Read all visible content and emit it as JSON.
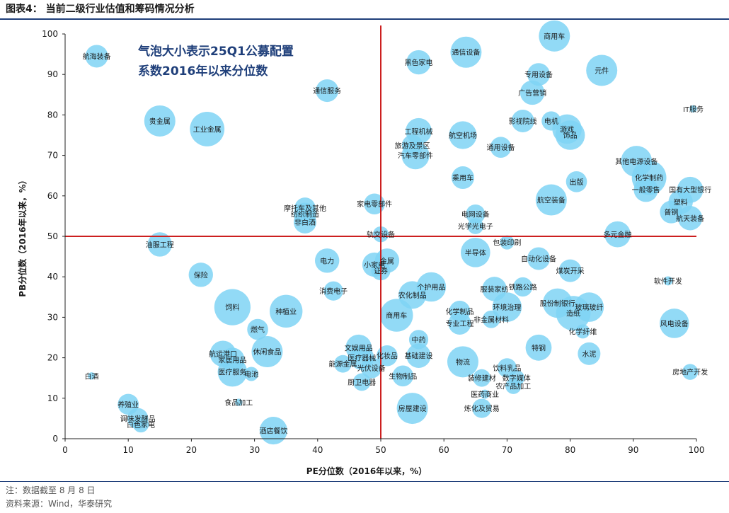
{
  "figure": {
    "title": "图表4： 当前二级行业估值和筹码情况分析",
    "note": "注：数据截至 8 月 8 日",
    "source": "资料来源：Wind，华泰研究"
  },
  "chart_data": {
    "type": "scatter",
    "xlabel": "PE分位数（2016年以来，%）",
    "ylabel": "PB分位数（2016年以来，%）",
    "xlim": [
      0,
      100
    ],
    "ylim": [
      0,
      100
    ],
    "x_ticks": [
      0,
      10,
      20,
      30,
      40,
      50,
      60,
      70,
      80,
      90,
      100
    ],
    "y_ticks": [
      0,
      10,
      20,
      30,
      40,
      50,
      60,
      70,
      80,
      90,
      100
    ],
    "reference_lines": {
      "x": 50,
      "y": 50,
      "color": "#cc1f1f"
    },
    "bubble_color": "#7fd3f5",
    "annotation": [
      "气泡大小表示25Q1公募配置",
      "系数2016年以来分位数"
    ],
    "points": [
      {
        "name": "航海装备",
        "x": 5,
        "y": 94.5,
        "size": 0.5
      },
      {
        "name": "白酒",
        "x": 4.2,
        "y": 15.5,
        "size": 0.05
      },
      {
        "name": "贵金属",
        "x": 15,
        "y": 78.5,
        "size": 0.75
      },
      {
        "name": "工业金属",
        "x": 22.5,
        "y": 76.5,
        "size": 0.85
      },
      {
        "name": "油服工程",
        "x": 15,
        "y": 48,
        "size": 0.55
      },
      {
        "name": "保险",
        "x": 21.5,
        "y": 40.5,
        "size": 0.55
      },
      {
        "name": "饲料",
        "x": 26.5,
        "y": 32.5,
        "size": 0.9
      },
      {
        "name": "燃气",
        "x": 30.5,
        "y": 27,
        "size": 0.45
      },
      {
        "name": "种植业",
        "x": 35,
        "y": 31.5,
        "size": 0.8
      },
      {
        "name": "休闲食品",
        "x": 32,
        "y": 21.5,
        "size": 0.75
      },
      {
        "name": "航运港口",
        "x": 25,
        "y": 21,
        "size": 0.6
      },
      {
        "name": "家居用品",
        "x": 26.5,
        "y": 19.5,
        "size": 0.55
      },
      {
        "name": "医疗服务",
        "x": 26.5,
        "y": 16.5,
        "size": 0.7
      },
      {
        "name": "电池",
        "x": 29.5,
        "y": 16,
        "size": 0.25
      },
      {
        "name": "食品加工",
        "x": 27.5,
        "y": 9,
        "size": 0.05
      },
      {
        "name": "养殖业",
        "x": 10,
        "y": 8.5,
        "size": 0.45
      },
      {
        "name": "调味发酵品",
        "x": 11.5,
        "y": 5,
        "size": 0.45
      },
      {
        "name": "白色家电",
        "x": 12,
        "y": 3.5,
        "size": 0.3
      },
      {
        "name": "酒店餐饮",
        "x": 33,
        "y": 2,
        "size": 0.65
      },
      {
        "name": "通信服务",
        "x": 41.5,
        "y": 86,
        "size": 0.5
      },
      {
        "name": "摩托车及其他",
        "x": 38,
        "y": 57,
        "size": 0.45
      },
      {
        "name": "纺织制造",
        "x": 38,
        "y": 55.5,
        "size": 0.5
      },
      {
        "name": "非白酒",
        "x": 38,
        "y": 53.5,
        "size": 0.5
      },
      {
        "name": "电力",
        "x": 41.5,
        "y": 44,
        "size": 0.55
      },
      {
        "name": "消费电子",
        "x": 42.5,
        "y": 36.5,
        "size": 0.4
      },
      {
        "name": "家电零部件",
        "x": 49,
        "y": 58,
        "size": 0.45
      },
      {
        "name": "轨交设备",
        "x": 50,
        "y": 50.5,
        "size": 0.3
      },
      {
        "name": "小家电",
        "x": 49,
        "y": 43,
        "size": 0.55
      },
      {
        "name": "金属",
        "x": 51,
        "y": 44,
        "size": 0.55
      },
      {
        "name": "证券",
        "x": 50,
        "y": 41.5,
        "size": 0.4
      },
      {
        "name": "文娱用品",
        "x": 46.5,
        "y": 22.5,
        "size": 0.6
      },
      {
        "name": "医疗器械",
        "x": 47,
        "y": 20,
        "size": 0.55
      },
      {
        "name": "能源金属",
        "x": 44,
        "y": 18.5,
        "size": 0.35
      },
      {
        "name": "光伏设备",
        "x": 48.5,
        "y": 17.5,
        "size": 0.45
      },
      {
        "name": "厨卫电器",
        "x": 47,
        "y": 14,
        "size": 0.35
      },
      {
        "name": "化妆品",
        "x": 51,
        "y": 20.5,
        "size": 0.45
      },
      {
        "name": "生物制品",
        "x": 53.5,
        "y": 15.5,
        "size": 0.45
      },
      {
        "name": "黑色家电",
        "x": 56,
        "y": 93,
        "size": 0.55
      },
      {
        "name": "工程机械",
        "x": 56,
        "y": 76,
        "size": 0.6
      },
      {
        "name": "旅游及景区",
        "x": 55,
        "y": 72.5,
        "size": 0.45
      },
      {
        "name": "汽车零部件",
        "x": 55.5,
        "y": 70,
        "size": 0.65
      },
      {
        "name": "个护用品",
        "x": 58,
        "y": 37.5,
        "size": 0.7
      },
      {
        "name": "农化制品",
        "x": 55,
        "y": 35.5,
        "size": 0.65
      },
      {
        "name": "商用车",
        "x": 52.5,
        "y": 30.5,
        "size": 0.8
      },
      {
        "name": "中药",
        "x": 56,
        "y": 24.5,
        "size": 0.4
      },
      {
        "name": "基础建设",
        "x": 56,
        "y": 20.5,
        "size": 0.55
      },
      {
        "name": "房屋建设",
        "x": 55,
        "y": 7.5,
        "size": 0.75
      },
      {
        "name": "通信设备",
        "x": 63.5,
        "y": 95.5,
        "size": 0.75
      },
      {
        "name": "航空机场",
        "x": 63,
        "y": 75,
        "size": 0.65
      },
      {
        "name": "乘用车",
        "x": 63,
        "y": 64.5,
        "size": 0.5
      },
      {
        "name": "电网设备",
        "x": 65,
        "y": 55.5,
        "size": 0.4
      },
      {
        "name": "光学光电子",
        "x": 65,
        "y": 52.5,
        "size": 0.3
      },
      {
        "name": "半导体",
        "x": 65,
        "y": 46,
        "size": 0.7
      },
      {
        "name": "化学制品",
        "x": 62.5,
        "y": 31.5,
        "size": 0.45
      },
      {
        "name": "专业工程",
        "x": 62.5,
        "y": 28.5,
        "size": 0.5
      },
      {
        "name": "物流",
        "x": 63,
        "y": 19,
        "size": 0.75
      },
      {
        "name": "装修建材",
        "x": 66,
        "y": 15,
        "size": 0.35
      },
      {
        "name": "医药商业",
        "x": 66.5,
        "y": 11,
        "size": 0.1
      },
      {
        "name": "炼化及贸易",
        "x": 66,
        "y": 7.5,
        "size": 0.4
      },
      {
        "name": "通用设备",
        "x": 69,
        "y": 72,
        "size": 0.45
      },
      {
        "name": "包装印刷",
        "x": 70,
        "y": 48.5,
        "size": 0.25
      },
      {
        "name": "服装家纺",
        "x": 68,
        "y": 37,
        "size": 0.55
      },
      {
        "name": "铁路公路",
        "x": 72.5,
        "y": 37.5,
        "size": 0.4
      },
      {
        "name": "环境治理",
        "x": 70,
        "y": 32.5,
        "size": 0.7
      },
      {
        "name": "非金属材料",
        "x": 67.5,
        "y": 29.5,
        "size": 0.35
      },
      {
        "name": "饮料乳品",
        "x": 70,
        "y": 17.5,
        "size": 0.4
      },
      {
        "name": "数字媒体",
        "x": 71.5,
        "y": 15,
        "size": 0.3
      },
      {
        "name": "农产品加工",
        "x": 71,
        "y": 13,
        "size": 0.3
      },
      {
        "name": "专用设备",
        "x": 75,
        "y": 90,
        "size": 0.5
      },
      {
        "name": "广告营销",
        "x": 74,
        "y": 85.5,
        "size": 0.55
      },
      {
        "name": "影视院线",
        "x": 72.5,
        "y": 78.5,
        "size": 0.5
      },
      {
        "name": "电机",
        "x": 77,
        "y": 78.5,
        "size": 0.4
      },
      {
        "name": "航空装备",
        "x": 77,
        "y": 59,
        "size": 0.75
      },
      {
        "name": "自动化设备",
        "x": 75,
        "y": 44.5,
        "size": 0.5
      },
      {
        "name": "特钢",
        "x": 75,
        "y": 22.5,
        "size": 0.6
      },
      {
        "name": "商用车",
        "x": 77.5,
        "y": 99.5,
        "size": 0.75
      },
      {
        "name": "元件",
        "x": 85,
        "y": 91,
        "size": 0.75
      },
      {
        "name": "游戏",
        "x": 79.5,
        "y": 76.5,
        "size": 0.7
      },
      {
        "name": "饰品",
        "x": 80,
        "y": 75,
        "size": 0.7
      },
      {
        "name": "出版",
        "x": 81,
        "y": 63.5,
        "size": 0.45
      },
      {
        "name": "煤炭开采",
        "x": 80,
        "y": 41.5,
        "size": 0.5
      },
      {
        "name": "股份制银行",
        "x": 78,
        "y": 33.5,
        "size": 0.7
      },
      {
        "name": "造纸",
        "x": 80.5,
        "y": 31,
        "size": 0.85
      },
      {
        "name": "玻璃玻纤",
        "x": 83,
        "y": 32.5,
        "size": 0.7
      },
      {
        "name": "化学纤维",
        "x": 82,
        "y": 26.5,
        "size": 0.25
      },
      {
        "name": "水泥",
        "x": 83,
        "y": 21,
        "size": 0.5
      },
      {
        "name": "多元金融",
        "x": 87.5,
        "y": 50.5,
        "size": 0.6
      },
      {
        "name": "其他电源设备",
        "x": 90.5,
        "y": 68.5,
        "size": 0.75
      },
      {
        "name": "化学制药",
        "x": 92.5,
        "y": 64.5,
        "size": 0.85
      },
      {
        "name": "一般零售",
        "x": 92,
        "y": 61.5,
        "size": 0.55
      },
      {
        "name": "国有大型银行",
        "x": 99,
        "y": 61.5,
        "size": 0.6
      },
      {
        "name": "塑料",
        "x": 97.5,
        "y": 58.5,
        "size": 0.55
      },
      {
        "name": "普钢",
        "x": 96,
        "y": 56,
        "size": 0.5
      },
      {
        "name": "航天装备",
        "x": 99,
        "y": 54.5,
        "size": 0.55
      },
      {
        "name": "IT服务",
        "x": 99.5,
        "y": 81.5,
        "size": 0.05
      },
      {
        "name": "软件开发",
        "x": 95.5,
        "y": 39,
        "size": 0.1
      },
      {
        "name": "风电设备",
        "x": 96.5,
        "y": 28.5,
        "size": 0.7
      },
      {
        "name": "房地产开发",
        "x": 99,
        "y": 16.5,
        "size": 0.3
      }
    ]
  }
}
